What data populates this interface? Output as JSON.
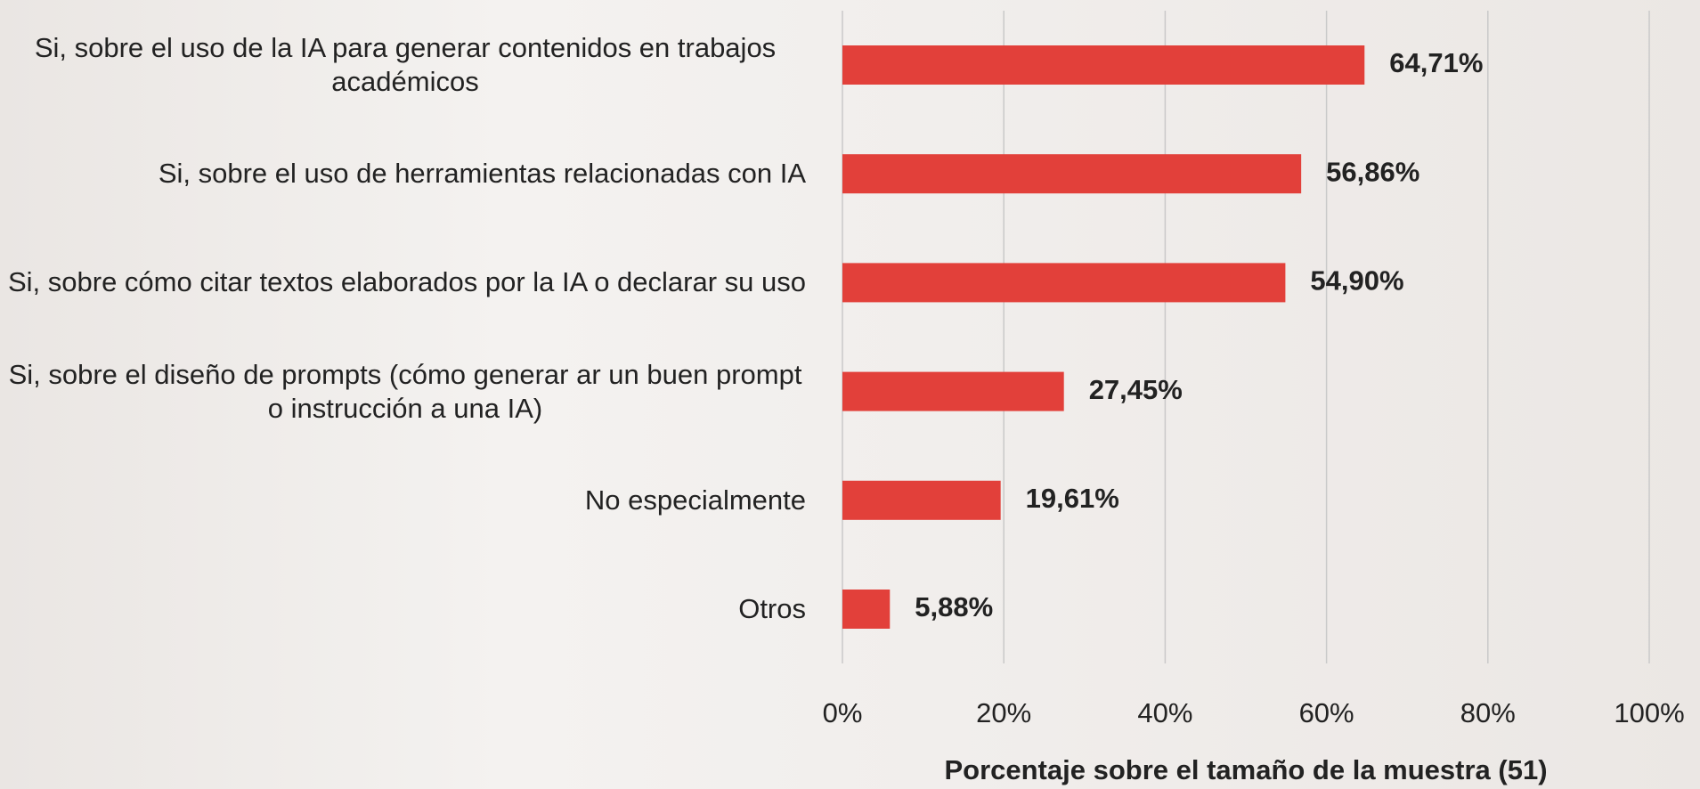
{
  "chart_data": {
    "type": "bar",
    "orientation": "horizontal",
    "categories": [
      "Si, sobre el uso de la IA para generar contenidos en trabajos académicos",
      "Si, sobre el uso de herramientas relacionadas con IA",
      "Si, sobre cómo citar textos elaborados por la IA o declarar su uso",
      "Si, sobre el diseño de prompts (cómo generar ar un buen prompt o instrucción a una IA)",
      "No especialmente",
      "Otros"
    ],
    "values": [
      64.71,
      56.86,
      54.9,
      27.45,
      19.61,
      5.88
    ],
    "value_labels": [
      "64,71%",
      "56,86%",
      "54,90%",
      "27,45%",
      "19,61%",
      "5,88%"
    ],
    "color": "#e2403a",
    "xlabel": "Porcentaje sobre el tamaño de la muestra (51)",
    "xlim": [
      0,
      100
    ],
    "xticks": [
      {
        "value": 0,
        "label": "0%"
      },
      {
        "value": 20,
        "label": "20%"
      },
      {
        "value": 40,
        "label": "40%"
      },
      {
        "value": 60,
        "label": "60%"
      },
      {
        "value": 80,
        "label": "80%"
      },
      {
        "value": 100,
        "label": "100%"
      }
    ],
    "grid": true
  }
}
